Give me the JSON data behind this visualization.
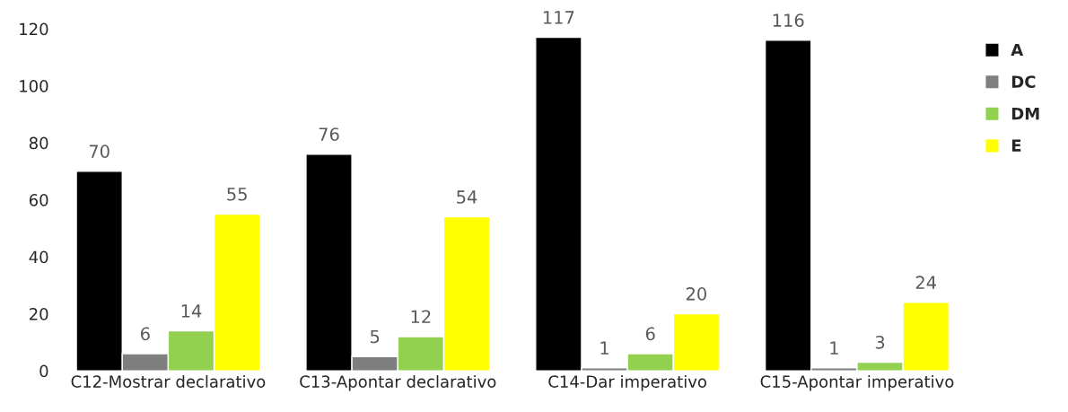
{
  "chart_data": {
    "type": "bar",
    "categories": [
      "C12-Mostrar declarativo",
      "C13-Apontar declarativo",
      "C14-Dar imperativo",
      "C15-Apontar imperativo"
    ],
    "series": [
      {
        "name": "A",
        "color": "#000000",
        "values": [
          70,
          76,
          117,
          116
        ]
      },
      {
        "name": "DC",
        "color": "#7f7f7f",
        "values": [
          6,
          5,
          1,
          1
        ]
      },
      {
        "name": "DM",
        "color": "#92d050",
        "values": [
          14,
          12,
          6,
          3
        ]
      },
      {
        "name": "E",
        "color": "#ffff00",
        "values": [
          55,
          54,
          20,
          24
        ]
      }
    ],
    "ylim": [
      0,
      120
    ],
    "yticks": [
      0,
      20,
      40,
      60,
      80,
      100,
      120
    ],
    "data_labels": true,
    "grid": false,
    "legend": "top right"
  }
}
